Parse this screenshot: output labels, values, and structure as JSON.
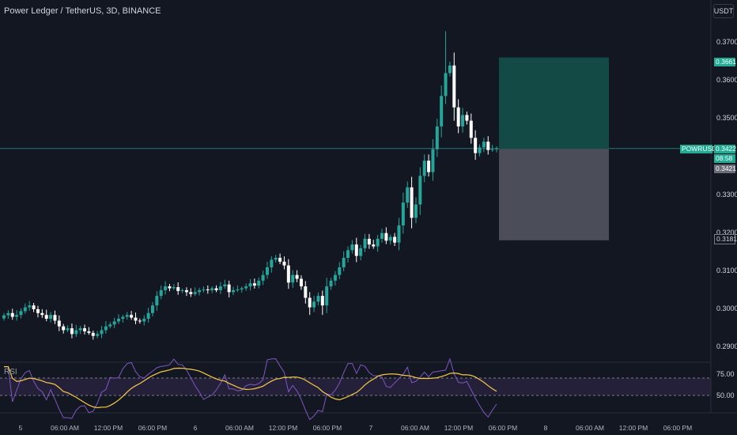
{
  "header": {
    "title": "Power Ledger / TetherUS, 3D, BINANCE",
    "currency_button": "USDT"
  },
  "price_axis": {
    "ticks": [
      "0.3700",
      "0.3600",
      "0.3500",
      "0.3300",
      "0.3200",
      "0.3100",
      "0.3000",
      "0.2900"
    ],
    "tick_values": [
      0.37,
      0.36,
      0.35,
      0.33,
      0.32,
      0.31,
      0.3,
      0.29
    ],
    "target_label": "0.3661",
    "symbol_label": "POWRUSDT",
    "current_price_label": "0.3422",
    "countdown_label": "08:58",
    "entry_label": "0.3421",
    "stop_label": "0.3181"
  },
  "rsi_panel": {
    "label": "RSI",
    "upper_level": "75.00",
    "lower_level": "50.00"
  },
  "time_axis": {
    "labels": [
      "5",
      "06:00 AM",
      "12:00 PM",
      "06:00 PM",
      "6",
      "06:00 AM",
      "12:00 PM",
      "06:00 PM",
      "7",
      "06:00 AM",
      "12:00 PM",
      "06:00 PM",
      "8",
      "06:00 AM",
      "12:00 PM",
      "06:00 PM"
    ]
  },
  "position_tool": {
    "target": 0.3661,
    "entry": 0.3421,
    "stop": 0.3181
  },
  "colors": {
    "up": "#26a69a",
    "down": "#ffffff",
    "profit_zone": "#134a45",
    "loss_zone": "#4b4e59",
    "rsi_line": "#7e57c2",
    "rsi_ma": "#f7c948",
    "background": "#131722"
  },
  "chart_data": {
    "type": "candlestick",
    "closes": [
      0.2984,
      0.299,
      0.298,
      0.2985,
      0.2995,
      0.3005,
      0.301,
      0.3,
      0.299,
      0.2985,
      0.2975,
      0.2985,
      0.297,
      0.2955,
      0.2945,
      0.295,
      0.2935,
      0.2945,
      0.295,
      0.2942,
      0.2938,
      0.293,
      0.2935,
      0.2945,
      0.2955,
      0.296,
      0.2968,
      0.2975,
      0.298,
      0.2985,
      0.2978,
      0.297,
      0.2968,
      0.2975,
      0.299,
      0.301,
      0.3035,
      0.305,
      0.306,
      0.3055,
      0.3058,
      0.3048,
      0.305,
      0.3045,
      0.304,
      0.3045,
      0.305,
      0.3052,
      0.305,
      0.3055,
      0.305,
      0.306,
      0.3065,
      0.3045,
      0.305,
      0.3052,
      0.3055,
      0.306,
      0.3068,
      0.3062,
      0.3075,
      0.309,
      0.311,
      0.313,
      0.3135,
      0.3125,
      0.3115,
      0.307,
      0.309,
      0.308,
      0.306,
      0.303,
      0.3005,
      0.302,
      0.3035,
      0.301,
      0.306,
      0.3075,
      0.309,
      0.311,
      0.3135,
      0.3155,
      0.317,
      0.314,
      0.316,
      0.3185,
      0.317,
      0.3165,
      0.3185,
      0.32,
      0.318,
      0.319,
      0.3175,
      0.322,
      0.328,
      0.332,
      0.324,
      0.3275,
      0.335,
      0.339,
      0.336,
      0.342,
      0.348,
      0.356,
      0.362,
      0.364,
      0.353,
      0.348,
      0.351,
      0.3495,
      0.345,
      0.341,
      0.3425,
      0.344,
      0.3418,
      0.342,
      0.3422
    ],
    "x_labels": [
      "5",
      "06:00 AM",
      "12:00 PM",
      "06:00 PM",
      "6",
      "06:00 AM",
      "12:00 PM",
      "06:00 PM",
      "7",
      "06:00 AM",
      "12:00 PM",
      "06:00 PM",
      "8",
      "06:00 AM",
      "12:00 PM",
      "06:00 PM"
    ],
    "y_ticks": [
      0.37,
      0.36,
      0.35,
      0.33,
      0.32,
      0.31,
      0.3,
      0.29
    ],
    "y_range": [
      0.2865,
      0.376
    ]
  }
}
